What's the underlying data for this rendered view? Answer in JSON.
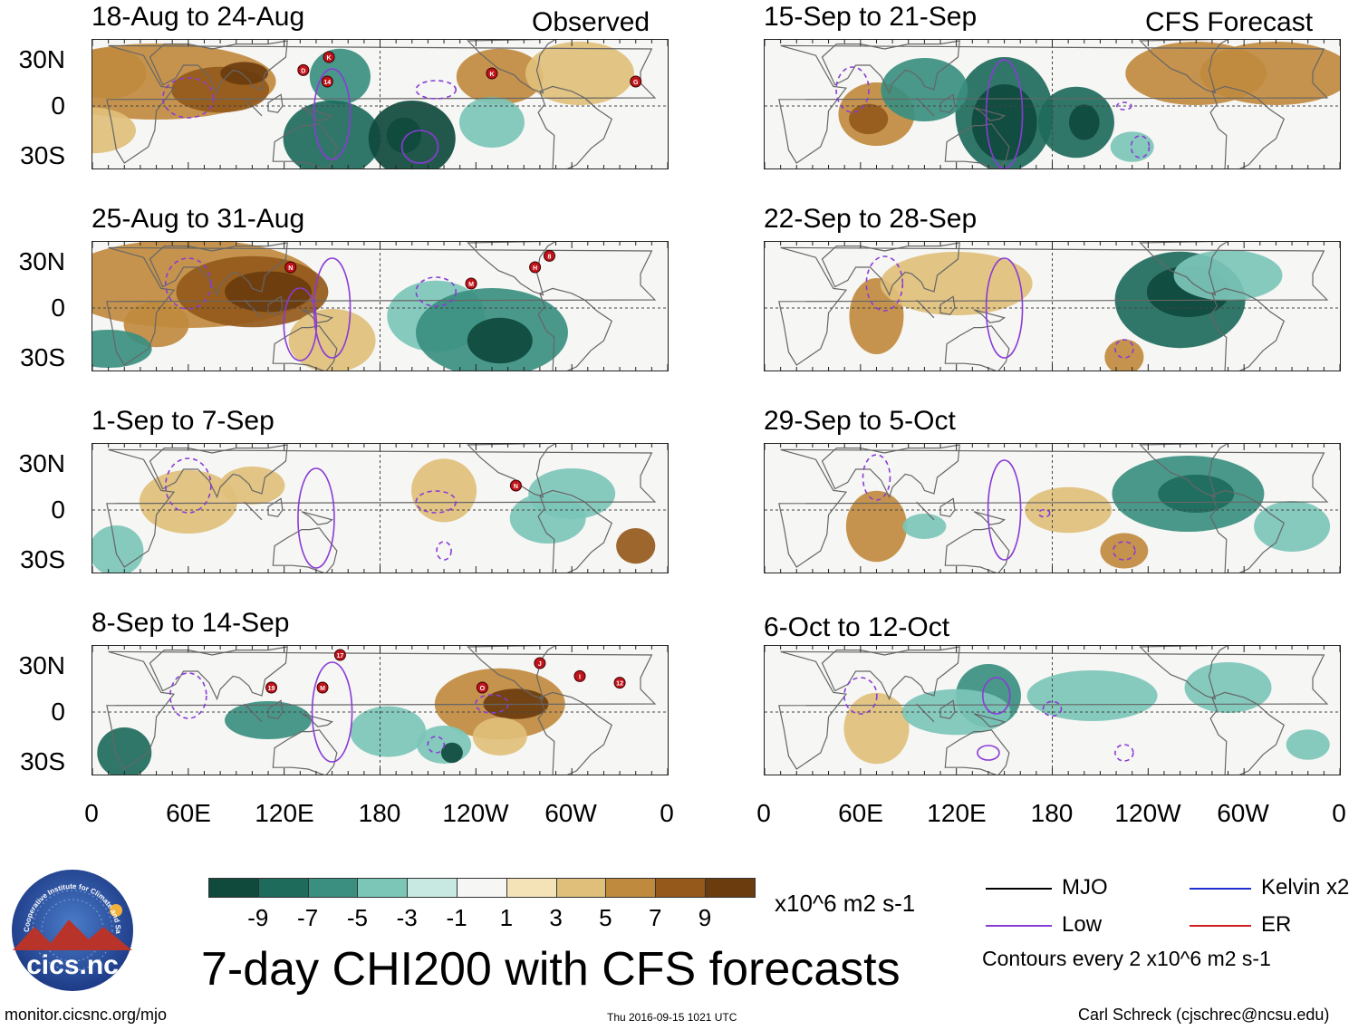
{
  "header": {
    "observed_label": "Observed",
    "forecast_label": "CFS Forecast"
  },
  "observed_panels": [
    {
      "title": "18-Aug to 24-Aug"
    },
    {
      "title": "25-Aug to 31-Aug"
    },
    {
      "title": "1-Sep to 7-Sep"
    },
    {
      "title": "8-Sep to 14-Sep"
    }
  ],
  "forecast_panels": [
    {
      "title": "15-Sep to 21-Sep"
    },
    {
      "title": "22-Sep to 28-Sep"
    },
    {
      "title": "29-Sep to 5-Oct"
    },
    {
      "title": "6-Oct to 12-Oct"
    }
  ],
  "lat_labels": [
    "30N",
    "0",
    "30S"
  ],
  "lon_labels": [
    "0",
    "60E",
    "120E",
    "180",
    "120W",
    "60W",
    "0"
  ],
  "colorbar": {
    "colors": [
      "#0f4a3d",
      "#1e6b5c",
      "#3a8f80",
      "#7cc6b8",
      "#c7e9e1",
      "#f6f6f4",
      "#f5e3b8",
      "#dfbf7a",
      "#c08a3e",
      "#94591b",
      "#6b3c0e"
    ],
    "labels": [
      "-9",
      "-7",
      "-5",
      "-3",
      "-1",
      "1",
      "3",
      "5",
      "7",
      "9"
    ],
    "units": "x10^6 m2 s-1"
  },
  "legend": {
    "items": [
      {
        "label": "MJO",
        "color": "#000000"
      },
      {
        "label": "Low",
        "color": "#8a3bd6"
      },
      {
        "label": "Kelvin x2",
        "color": "#1f2fd1"
      },
      {
        "label": "ER",
        "color": "#d11f1f"
      }
    ],
    "contours_note": "Contours every 2 x10^6 m2 s-1"
  },
  "main_title": "7-day CHI200 with CFS forecasts",
  "logo": {
    "arc_text": "Cooperative Institute for Climate and Satellites",
    "name": "cics.nc"
  },
  "footer": {
    "url": "monitor.cicsnc.org/mjo",
    "timestamp": "Thu 2016-09-15 1021 UTC",
    "credit": "Carl Schreck (cjschrec@ncsu.edu)"
  },
  "storm_markers": [
    {
      "panel": 0,
      "label": "D"
    },
    {
      "panel": 0,
      "label": "K"
    },
    {
      "panel": 0,
      "label": "14"
    },
    {
      "panel": 0,
      "label": "K"
    },
    {
      "panel": 0,
      "label": "G"
    },
    {
      "panel": 1,
      "label": "N"
    },
    {
      "panel": 1,
      "label": "M"
    },
    {
      "panel": 1,
      "label": "H"
    },
    {
      "panel": 1,
      "label": "8"
    },
    {
      "panel": 2,
      "label": "N"
    },
    {
      "panel": 3,
      "label": "17"
    },
    {
      "panel": 3,
      "label": "19"
    },
    {
      "panel": 3,
      "label": "M"
    },
    {
      "panel": 3,
      "label": "O"
    },
    {
      "panel": 3,
      "label": "J"
    },
    {
      "panel": 3,
      "label": "I"
    },
    {
      "panel": 3,
      "label": "12"
    }
  ]
}
